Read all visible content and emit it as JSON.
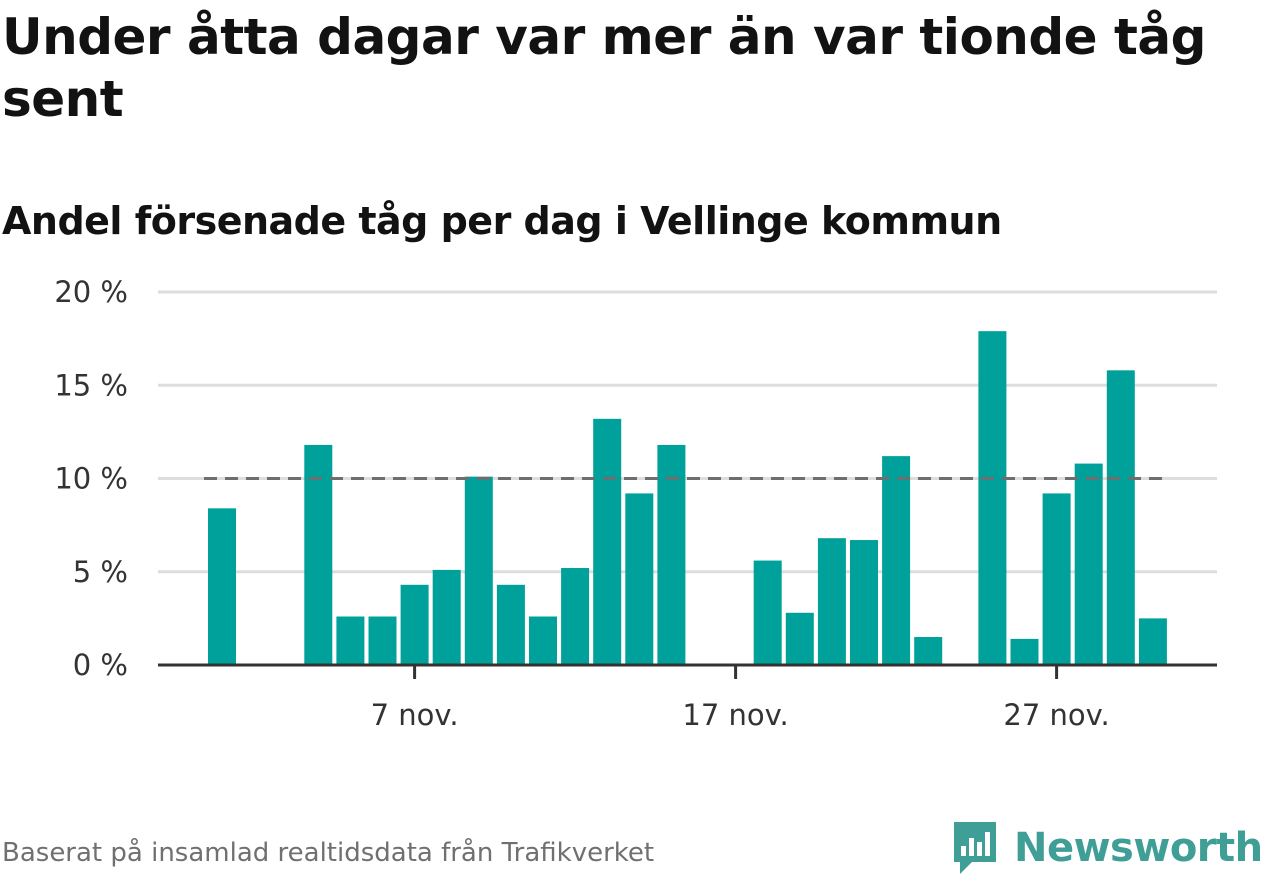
{
  "title": "Under åtta dagar var mer än var tionde tåg sent",
  "subtitle": "Andel försenade tåg per dag i Vellinge kommun",
  "footer": "Baserat på insamlad realtidsdata från Trafikverket",
  "brand": {
    "name": "Newsworthy",
    "color": "#3f9e96"
  },
  "colors": {
    "bar": "#00a19a",
    "reference_line": "#6e6e6e",
    "grid": "#dddddd",
    "axis": "#333333"
  },
  "chart_data": {
    "type": "bar",
    "title": "Andel försenade tåg per dag i Vellinge kommun",
    "xlabel": "",
    "ylabel": "",
    "ylim": [
      0,
      20
    ],
    "y_ticks": [
      0,
      5,
      10,
      15,
      20
    ],
    "y_tick_labels": [
      "0 %",
      "5 %",
      "10 %",
      "15 %",
      "20 %"
    ],
    "x_tick_labels": [
      {
        "label": "7 nov.",
        "day": 7
      },
      {
        "label": "17 nov.",
        "day": 17
      },
      {
        "label": "27 nov.",
        "day": 27
      }
    ],
    "reference_line": {
      "y": 10,
      "style": "dashed"
    },
    "grid": true,
    "x_days": [
      1,
      2,
      3,
      4,
      5,
      6,
      7,
      8,
      9,
      10,
      11,
      12,
      13,
      14,
      15,
      16,
      17,
      18,
      19,
      20,
      21,
      22,
      23,
      24,
      25,
      26,
      27,
      28,
      29,
      30
    ],
    "values": [
      8.4,
      null,
      null,
      11.8,
      2.6,
      2.6,
      4.3,
      5.1,
      10.1,
      4.3,
      2.6,
      5.2,
      13.2,
      9.2,
      11.8,
      null,
      null,
      5.6,
      2.8,
      6.8,
      6.7,
      11.2,
      1.5,
      null,
      17.9,
      1.4,
      9.2,
      10.8,
      15.8,
      2.5
    ]
  }
}
